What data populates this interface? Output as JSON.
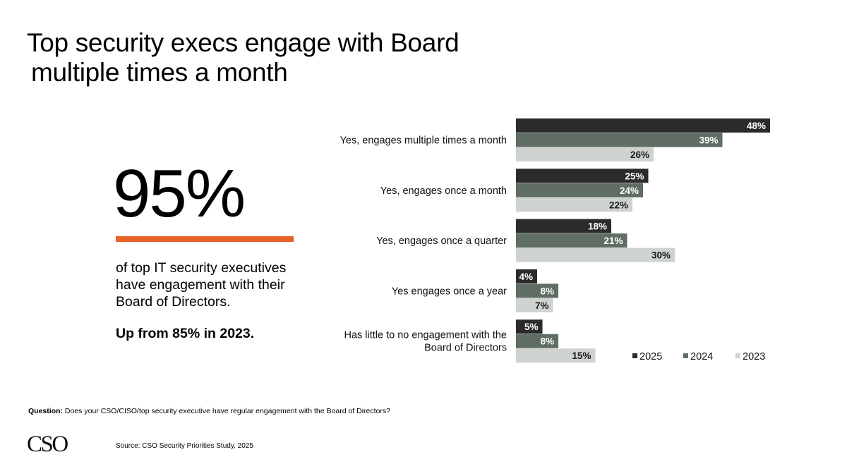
{
  "title": {
    "line1": "Top security execs engage with Board",
    "line2": "multiple times a month"
  },
  "highlight": {
    "value": "95%",
    "description": "of top IT security executives have engagement with their Board of Directors.",
    "note": "Up from 85% in 2023.",
    "accent_color": "#e8622a"
  },
  "chart_data": {
    "type": "bar",
    "orientation": "horizontal",
    "categories": [
      "Yes, engages multiple times a month",
      "Yes, engages once a month",
      "Yes, engages once a quarter",
      "Yes engages once a year",
      "Has little to no engagement with the Board of Directors"
    ],
    "category_lines": [
      [
        "Yes, engages multiple times a month"
      ],
      [
        "Yes, engages once a month"
      ],
      [
        "Yes, engages once a quarter"
      ],
      [
        "Yes engages once a year"
      ],
      [
        "Has little to no engagement with the",
        "Board of Directors"
      ]
    ],
    "series": [
      {
        "name": "2025",
        "values": [
          48,
          25,
          18,
          4,
          5
        ],
        "color": "#2b2b2b",
        "label_color": "#ffffff"
      },
      {
        "name": "2024",
        "values": [
          39,
          24,
          21,
          8,
          8
        ],
        "color": "#5f6d63",
        "label_color": "#ffffff"
      },
      {
        "name": "2023",
        "values": [
          26,
          22,
          30,
          7,
          15
        ],
        "color": "#cfd3d0",
        "label_color": "#1a1a1a"
      }
    ],
    "value_suffix": "%",
    "xlim": [
      0,
      50
    ],
    "grid": false,
    "legend_position": "bottom-right"
  },
  "footer": {
    "question_label": "Question:",
    "question_text": "Does your CSO/CISO/top security executive have regular engagement with the Board of Directors?",
    "logo": "CSO",
    "source": "Source: CSO Security Priorities Study, 2025"
  }
}
